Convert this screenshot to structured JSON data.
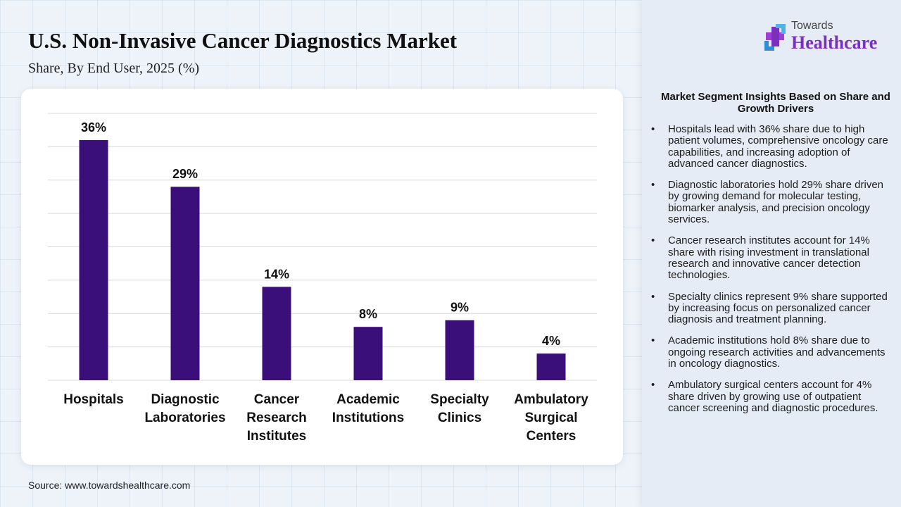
{
  "header": {
    "title": "U.S. Non-Invasive Cancer Diagnostics Market",
    "subtitle": "Share, By End User, 2025 (%)"
  },
  "source": "Source: www.towardshealthcare.com",
  "logo": {
    "small_text": "Towards",
    "big_text": "Healthcare",
    "icon": "medical-cross-logo-icon"
  },
  "insights": {
    "title": "Market Segment Insights Based on Share and Growth Drivers",
    "bullet_glyph": "•",
    "items": [
      "Hospitals lead with 36% share due to high patient volumes, comprehensive oncology care capabilities, and increasing adoption of advanced cancer diagnostics.",
      "Diagnostic laboratories hold 29% share driven by growing demand for molecular testing, biomarker analysis, and precision oncology services.",
      "Cancer research institutes account for 14% share with rising investment in translational research and innovative cancer detection technologies.",
      "Specialty clinics represent 9% share supported by increasing focus on personalized cancer diagnosis and treatment planning.",
      "Academic institutions hold 8% share due to ongoing research activities and advancements in oncology diagnostics.",
      "Ambulatory surgical centers account for 4% share driven by growing use of outpatient cancer screening and diagnostic procedures."
    ]
  },
  "colors": {
    "bar": "#3b0f7a",
    "gridline": "#d9d9d9",
    "logo_accent": "#7b2fbf"
  },
  "chart_data": {
    "type": "bar",
    "title": "U.S. Non-Invasive Cancer Diagnostics Market",
    "subtitle": "Share, By End User, 2025 (%)",
    "categories": [
      [
        "Hospitals"
      ],
      [
        "Diagnostic",
        "Laboratories"
      ],
      [
        "Cancer",
        "Research",
        "Institutes"
      ],
      [
        "Academic",
        "Institutions"
      ],
      [
        "Specialty",
        "Clinics"
      ],
      [
        "Ambulatory",
        "Surgical",
        "Centers"
      ]
    ],
    "values": [
      36,
      29,
      14,
      8,
      9,
      4
    ],
    "value_labels": [
      "36%",
      "29%",
      "14%",
      "8%",
      "9%",
      "4%"
    ],
    "unit": "%",
    "ylim": [
      0,
      40
    ],
    "grid": true,
    "legend": "none"
  }
}
